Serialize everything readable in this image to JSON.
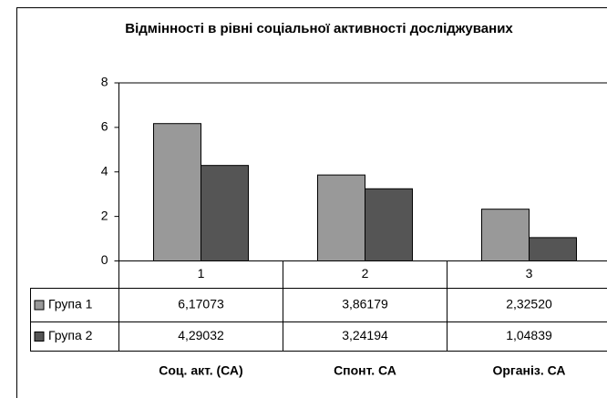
{
  "chart_data": {
    "type": "bar",
    "title": "Відмінності в рівні соціальної активності досліджуваних",
    "categories": [
      "1",
      "2",
      "3"
    ],
    "category_notes": [
      "Соц. акт. (СА)",
      "Спонт. СА",
      "Організ. СА"
    ],
    "series": [
      {
        "name": "Група 1",
        "color": "#999999",
        "values": [
          6.17073,
          3.86179,
          2.3252
        ],
        "value_labels": [
          "6,17073",
          "3,86179",
          "2,32520"
        ]
      },
      {
        "name": "Група 2",
        "color": "#555555",
        "values": [
          4.29032,
          3.24194,
          1.04839
        ],
        "value_labels": [
          "4,29032",
          "3,24194",
          "1,04839"
        ]
      }
    ],
    "ylim": [
      0,
      8
    ],
    "yticks": [
      0,
      2,
      4,
      6,
      8
    ],
    "grid": false
  }
}
